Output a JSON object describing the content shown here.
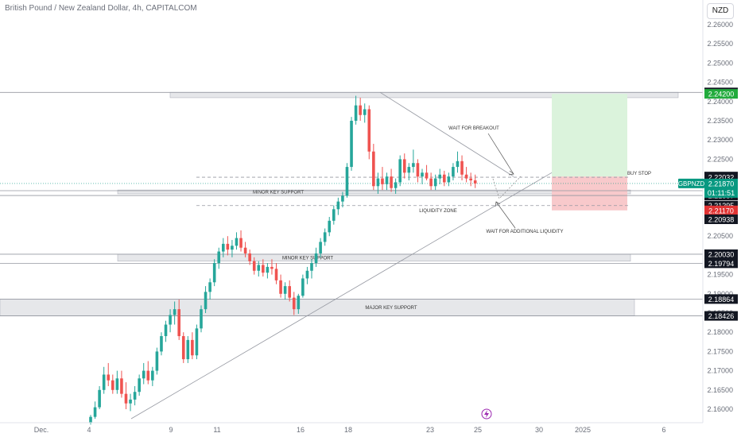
{
  "title": "British Pound / New Zealand Dollar, 4h, CAPITALCOM",
  "currency_button": "NZD",
  "symbol_tag": {
    "symbol": "GBPNZD",
    "price": "2.21870",
    "countdown": "01:11:51"
  },
  "event_icon": "lightning-icon",
  "colors": {
    "up": "#26a69a",
    "down": "#ef5350",
    "line": "#9598a1",
    "zone_fill": "#e6e7ea",
    "target_fill": "#dbf3dc",
    "stop_fill": "#f8c9cb",
    "label_dark": "#131722",
    "label_green": "#22ab3d",
    "label_red": "#e03434",
    "label_teal": "#089981"
  },
  "chart_data": {
    "type": "candlestick",
    "ylim": [
      2.1555,
      2.2675
    ],
    "price_axis_ticks": [
      "2.16000",
      "2.16500",
      "2.17000",
      "2.17500",
      "2.18000",
      "2.18500",
      "2.19000",
      "2.19500",
      "2.20000",
      "2.20500",
      "2.21000",
      "2.21500",
      "2.22000",
      "2.22500",
      "2.23000",
      "2.23500",
      "2.24000",
      "2.24500",
      "2.25000",
      "2.25500",
      "2.26000"
    ],
    "time_axis_ticks": [
      "Dec.",
      "4",
      "9",
      "11",
      "16",
      "18",
      "23",
      "25",
      "30",
      "2025",
      "6"
    ],
    "candles": [
      [
        2.1565,
        2.1585,
        2.156,
        2.158
      ],
      [
        2.158,
        2.162,
        2.1575,
        2.1605
      ],
      [
        2.1605,
        2.166,
        2.16,
        2.165
      ],
      [
        2.165,
        2.171,
        2.164,
        2.169
      ],
      [
        2.169,
        2.172,
        2.166,
        2.1675
      ],
      [
        2.1675,
        2.169,
        2.164,
        2.165
      ],
      [
        2.165,
        2.17,
        2.164,
        2.168
      ],
      [
        2.168,
        2.17,
        2.163,
        2.164
      ],
      [
        2.164,
        2.167,
        2.16,
        2.1615
      ],
      [
        2.1615,
        2.164,
        2.1595,
        2.1625
      ],
      [
        2.1625,
        2.166,
        2.161,
        2.1645
      ],
      [
        2.1645,
        2.169,
        2.1635,
        2.168
      ],
      [
        2.168,
        2.172,
        2.1665,
        2.17
      ],
      [
        2.17,
        2.1725,
        2.1665,
        2.1675
      ],
      [
        2.1675,
        2.171,
        2.166,
        2.17
      ],
      [
        2.17,
        2.176,
        2.169,
        2.175
      ],
      [
        2.175,
        2.18,
        2.174,
        2.179
      ],
      [
        2.179,
        2.183,
        2.1775,
        2.182
      ],
      [
        2.182,
        2.186,
        2.18,
        2.1845
      ],
      [
        2.1845,
        2.188,
        2.182,
        2.186
      ],
      [
        2.186,
        2.1885,
        2.178,
        2.179
      ],
      [
        2.179,
        2.18,
        2.172,
        2.173
      ],
      [
        2.173,
        2.179,
        2.172,
        2.178
      ],
      [
        2.178,
        2.18,
        2.173,
        2.174
      ],
      [
        2.174,
        2.182,
        2.173,
        2.181
      ],
      [
        2.181,
        2.187,
        2.18,
        2.186
      ],
      [
        2.186,
        2.192,
        2.185,
        2.1905
      ],
      [
        2.1905,
        2.194,
        2.1885,
        2.193
      ],
      [
        2.193,
        2.199,
        2.192,
        2.198
      ],
      [
        2.198,
        2.202,
        2.1965,
        2.201
      ],
      [
        2.201,
        2.2045,
        2.1995,
        2.203
      ],
      [
        2.203,
        2.205,
        2.2,
        2.2015
      ],
      [
        2.2015,
        2.204,
        2.1995,
        2.2025
      ],
      [
        2.2025,
        2.206,
        2.2015,
        2.2045
      ],
      [
        2.2045,
        2.2065,
        2.201,
        2.202
      ],
      [
        2.202,
        2.2035,
        2.1995,
        2.2005
      ],
      [
        2.2005,
        2.2015,
        2.1975,
        2.1985
      ],
      [
        2.1985,
        2.1995,
        2.195,
        2.196
      ],
      [
        2.196,
        2.1985,
        2.1945,
        2.1975
      ],
      [
        2.1975,
        2.199,
        2.1945,
        2.1955
      ],
      [
        2.1955,
        2.198,
        2.194,
        2.197
      ],
      [
        2.197,
        2.199,
        2.195,
        2.1965
      ],
      [
        2.1965,
        2.198,
        2.1925,
        2.1935
      ],
      [
        2.1935,
        2.195,
        2.189,
        2.19
      ],
      [
        2.19,
        2.193,
        2.1885,
        2.192
      ],
      [
        2.192,
        2.1935,
        2.188,
        2.189
      ],
      [
        2.189,
        2.1905,
        2.1845,
        2.186
      ],
      [
        2.186,
        2.19,
        2.1848,
        2.1895
      ],
      [
        2.1895,
        2.195,
        2.189,
        2.194
      ],
      [
        2.194,
        2.197,
        2.1925,
        2.196
      ],
      [
        2.196,
        2.199,
        2.194,
        2.198
      ],
      [
        2.198,
        2.202,
        2.197,
        2.2005
      ],
      [
        2.2005,
        2.2045,
        2.1995,
        2.2035
      ],
      [
        2.2035,
        2.207,
        2.2025,
        2.206
      ],
      [
        2.206,
        2.21,
        2.205,
        2.209
      ],
      [
        2.209,
        2.213,
        2.208,
        2.212
      ],
      [
        2.212,
        2.215,
        2.2105,
        2.214
      ],
      [
        2.214,
        2.2165,
        2.2125,
        2.2155
      ],
      [
        2.2155,
        2.224,
        2.215,
        2.223
      ],
      [
        2.223,
        2.236,
        2.222,
        2.235
      ],
      [
        2.235,
        2.2415,
        2.234,
        2.239
      ],
      [
        2.239,
        2.241,
        2.235,
        2.2365
      ],
      [
        2.2365,
        2.2395,
        2.2345,
        2.238
      ],
      [
        2.238,
        2.239,
        2.225,
        2.227
      ],
      [
        2.227,
        2.229,
        2.217,
        2.218
      ],
      [
        2.218,
        2.2215,
        2.216,
        2.22
      ],
      [
        2.22,
        2.223,
        2.217,
        2.2185
      ],
      [
        2.2185,
        2.2215,
        2.217,
        2.2205
      ],
      [
        2.2205,
        2.2225,
        2.2165,
        2.2175
      ],
      [
        2.2175,
        2.22,
        2.216,
        2.219
      ],
      [
        2.219,
        2.226,
        2.218,
        2.225
      ],
      [
        2.225,
        2.2265,
        2.22,
        2.2215
      ],
      [
        2.2215,
        2.224,
        2.2195,
        2.223
      ],
      [
        2.223,
        2.2275,
        2.2215,
        2.224
      ],
      [
        2.224,
        2.225,
        2.219,
        2.2205
      ],
      [
        2.2205,
        2.2225,
        2.2185,
        2.2215
      ],
      [
        2.2215,
        2.2235,
        2.2195,
        2.22
      ],
      [
        2.22,
        2.2215,
        2.217,
        2.218
      ],
      [
        2.218,
        2.221,
        2.217,
        2.22
      ],
      [
        2.22,
        2.2225,
        2.2185,
        2.221
      ],
      [
        2.221,
        2.222,
        2.218,
        2.219
      ],
      [
        2.219,
        2.2215,
        2.218,
        2.2205
      ],
      [
        2.2205,
        2.224,
        2.2195,
        2.223
      ],
      [
        2.223,
        2.227,
        2.2215,
        2.2245
      ],
      [
        2.2245,
        2.226,
        2.2195,
        2.221
      ],
      [
        2.221,
        2.223,
        2.219,
        2.22
      ],
      [
        2.22,
        2.2215,
        2.218,
        2.2195
      ],
      [
        2.2195,
        2.221,
        2.2175,
        2.2187
      ]
    ],
    "zones": [
      {
        "label": "",
        "top": 2.2424,
        "bottom": 2.241
      },
      {
        "label": "MINOR KEY SUPPORT",
        "top": 2.217,
        "bottom": 2.216
      },
      {
        "label": "MINOR KEY SUPPORT",
        "top": 2.2003,
        "bottom": 2.1985
      },
      {
        "label": "MAJOR KEY SUPPORT",
        "top": 2.1886,
        "bottom": 2.1843
      }
    ],
    "annotations": [
      "WAIT FOR BREAKOUT",
      "BUY STOP",
      "LIQUIDITY ZONE",
      "WAIT FOR ADDITIONAL LIQUIDITY"
    ],
    "price_labels": [
      {
        "value": "2.24237",
        "style": "dark"
      },
      {
        "value": "2.24200",
        "style": "green"
      },
      {
        "value": "2.22050",
        "style": "dark"
      },
      {
        "value": "2.22032",
        "style": "dark"
      },
      {
        "value": "2.21682",
        "style": "dark"
      },
      {
        "value": "2.21557",
        "style": "dark"
      },
      {
        "value": "2.21295",
        "style": "dark"
      },
      {
        "value": "2.21170",
        "style": "red"
      },
      {
        "value": "2.20938",
        "style": "dark"
      },
      {
        "value": "2.20030",
        "style": "dark"
      },
      {
        "value": "2.19794",
        "style": "dark"
      },
      {
        "value": "2.18864",
        "style": "dark"
      },
      {
        "value": "2.18426",
        "style": "dark"
      }
    ],
    "position": {
      "entry": 2.2205,
      "target": 2.242,
      "stop": 2.2117
    }
  }
}
